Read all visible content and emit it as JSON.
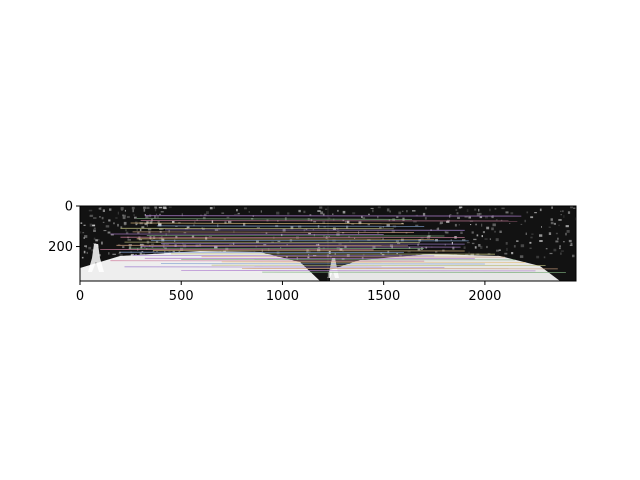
{
  "chart_data": {
    "type": "image",
    "title": "",
    "xlabel": "",
    "ylabel": "",
    "xlim": [
      0,
      2450
    ],
    "ylim": [
      370,
      0
    ],
    "x_ticks": [
      {
        "value": 0,
        "label": "0"
      },
      {
        "value": 500,
        "label": "500"
      },
      {
        "value": 1000,
        "label": "1000"
      },
      {
        "value": 1500,
        "label": "1500"
      },
      {
        "value": 2000,
        "label": "2000"
      }
    ],
    "y_ticks": [
      {
        "value": 0,
        "label": "0"
      },
      {
        "value": 200,
        "label": "200"
      }
    ],
    "content": {
      "left_image_width": 1225,
      "colors": {
        "background": "#ffffff",
        "image_dark": "#121212",
        "road": "#f2f2f2",
        "match_lines": [
          "#b07fd0",
          "#7fb07f",
          "#d07f9f",
          "#e3c07f",
          "#7f9fd0",
          "#c0c07f",
          "#a07fd0",
          "#d0a07f"
        ]
      },
      "match_lines": [
        {
          "x1": 320,
          "y1": 48,
          "x2": 2180,
          "y2": 50
        },
        {
          "x1": 280,
          "y1": 62,
          "x2": 1640,
          "y2": 66
        },
        {
          "x1": 300,
          "y1": 72,
          "x2": 2160,
          "y2": 74
        },
        {
          "x1": 250,
          "y1": 84,
          "x2": 1600,
          "y2": 88
        },
        {
          "x1": 380,
          "y1": 98,
          "x2": 1700,
          "y2": 100
        },
        {
          "x1": 200,
          "y1": 110,
          "x2": 1550,
          "y2": 112
        },
        {
          "x1": 420,
          "y1": 118,
          "x2": 1900,
          "y2": 120
        },
        {
          "x1": 260,
          "y1": 128,
          "x2": 1650,
          "y2": 130
        },
        {
          "x1": 150,
          "y1": 138,
          "x2": 1500,
          "y2": 140
        },
        {
          "x1": 330,
          "y1": 146,
          "x2": 1800,
          "y2": 148
        },
        {
          "x1": 200,
          "y1": 154,
          "x2": 1900,
          "y2": 156
        },
        {
          "x1": 280,
          "y1": 162,
          "x2": 1750,
          "y2": 164
        },
        {
          "x1": 350,
          "y1": 170,
          "x2": 1920,
          "y2": 172
        },
        {
          "x1": 220,
          "y1": 178,
          "x2": 1680,
          "y2": 180
        },
        {
          "x1": 400,
          "y1": 186,
          "x2": 1900,
          "y2": 188
        },
        {
          "x1": 180,
          "y1": 194,
          "x2": 1620,
          "y2": 196
        },
        {
          "x1": 300,
          "y1": 200,
          "x2": 1880,
          "y2": 203
        },
        {
          "x1": 240,
          "y1": 208,
          "x2": 1700,
          "y2": 210
        },
        {
          "x1": 100,
          "y1": 214,
          "x2": 1450,
          "y2": 216
        },
        {
          "x1": 360,
          "y1": 220,
          "x2": 1900,
          "y2": 222
        },
        {
          "x1": 200,
          "y1": 228,
          "x2": 1600,
          "y2": 230
        },
        {
          "x1": 450,
          "y1": 236,
          "x2": 2050,
          "y2": 238
        },
        {
          "x1": 260,
          "y1": 244,
          "x2": 1750,
          "y2": 246
        },
        {
          "x1": 600,
          "y1": 250,
          "x2": 2100,
          "y2": 252
        },
        {
          "x1": 320,
          "y1": 258,
          "x2": 1950,
          "y2": 260
        },
        {
          "x1": 500,
          "y1": 264,
          "x2": 2150,
          "y2": 266
        },
        {
          "x1": 150,
          "y1": 270,
          "x2": 1700,
          "y2": 272
        },
        {
          "x1": 700,
          "y1": 276,
          "x2": 2200,
          "y2": 278
        },
        {
          "x1": 400,
          "y1": 284,
          "x2": 2000,
          "y2": 286
        },
        {
          "x1": 650,
          "y1": 292,
          "x2": 2300,
          "y2": 294
        },
        {
          "x1": 220,
          "y1": 300,
          "x2": 1800,
          "y2": 302
        },
        {
          "x1": 800,
          "y1": 308,
          "x2": 2360,
          "y2": 310
        },
        {
          "x1": 500,
          "y1": 318,
          "x2": 2250,
          "y2": 320
        },
        {
          "x1": 900,
          "y1": 326,
          "x2": 2400,
          "y2": 328
        }
      ]
    }
  }
}
